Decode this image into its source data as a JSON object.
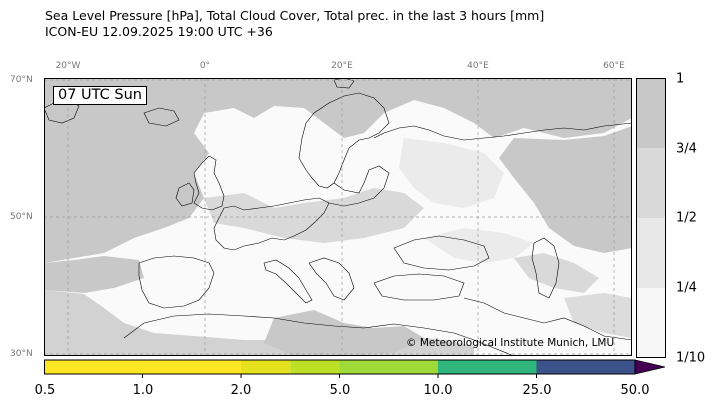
{
  "title": {
    "line1": "Sea Level Pressure [hPa], Total Cloud Cover, Total prec. in the last 3 hours [mm]",
    "line2": "ICON-EU 12.09.2025 19:00 UTC +36"
  },
  "valid_time": "07 UTC Sun",
  "credit": "© Meteorological Institute Munich, LMU",
  "longitude_labels": [
    "20°W",
    "0°",
    "20°E",
    "40°E",
    "60°E"
  ],
  "latitude_labels": [
    "70°N",
    "50°N",
    "30°N"
  ],
  "cloud_cover_colorbar": {
    "labels": [
      "1",
      "3/4",
      "1/2",
      "1/4",
      "1/10"
    ],
    "colors": [
      "#c8c8c8",
      "#d9d9d9",
      "#e8e8e8",
      "#f7f7f7"
    ]
  },
  "precip_colorbar": {
    "labels": [
      "0.5",
      "1.0",
      "2.0",
      "5.0",
      "10.0",
      "25.0",
      "50.0"
    ],
    "colors": [
      "#fde725",
      "#e6e11f",
      "#bddf26",
      "#a0da39",
      "#2eb67c",
      "#3b528b",
      "#440154"
    ]
  },
  "colors": {
    "cloud_heavy": "#c8c8c8",
    "cloud_medium": "#d9d9d9",
    "cloud_light": "#ebebeb",
    "clear": "#fafafa",
    "coastline": "#000000",
    "grid": "#9a9a9a"
  }
}
